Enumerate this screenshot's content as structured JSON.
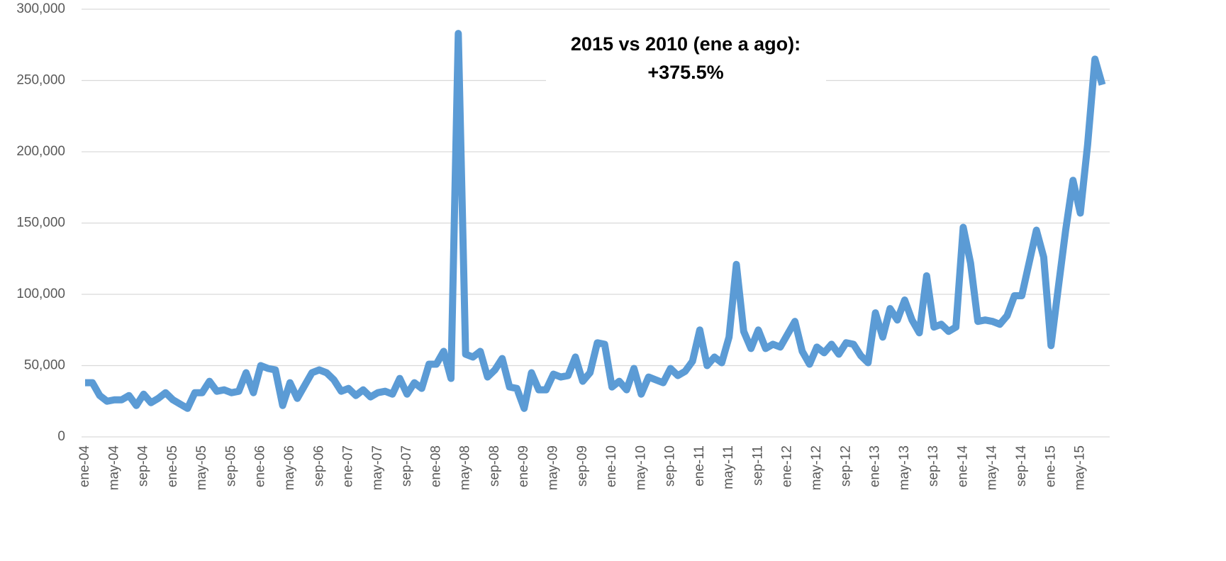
{
  "chart_data": {
    "type": "line",
    "annotation": [
      "2015 vs 2010 (ene a ago):",
      "+375.5%"
    ],
    "categories": [
      "ene-04",
      null,
      null,
      null,
      "may-04",
      null,
      null,
      null,
      "sep-04",
      null,
      null,
      null,
      "ene-05",
      null,
      null,
      null,
      "may-05",
      null,
      null,
      null,
      "sep-05",
      null,
      null,
      null,
      "ene-06",
      null,
      null,
      null,
      "may-06",
      null,
      null,
      null,
      "sep-06",
      null,
      null,
      null,
      "ene-07",
      null,
      null,
      null,
      "may-07",
      null,
      null,
      null,
      "sep-07",
      null,
      null,
      null,
      "ene-08",
      null,
      null,
      null,
      "may-08",
      null,
      null,
      null,
      "sep-08",
      null,
      null,
      null,
      "ene-09",
      null,
      null,
      null,
      "may-09",
      null,
      null,
      null,
      "sep-09",
      null,
      null,
      null,
      "ene-10",
      null,
      null,
      null,
      "may-10",
      null,
      null,
      null,
      "sep-10",
      null,
      null,
      null,
      "ene-11",
      null,
      null,
      null,
      "may-11",
      null,
      null,
      null,
      "sep-11",
      null,
      null,
      null,
      "ene-12",
      null,
      null,
      null,
      "may-12",
      null,
      null,
      null,
      "sep-12",
      null,
      null,
      null,
      "ene-13",
      null,
      null,
      null,
      "may-13",
      null,
      null,
      null,
      "sep-13",
      null,
      null,
      null,
      "ene-14",
      null,
      null,
      null,
      "may-14",
      null,
      null,
      null,
      "sep-14",
      null,
      null,
      null,
      "ene-15",
      null,
      null,
      null,
      "may-15",
      null,
      null,
      null
    ],
    "series": [
      {
        "color": "#5b9bd5",
        "values": [
          38000,
          38000,
          29000,
          25000,
          26000,
          26000,
          29000,
          22000,
          30000,
          24000,
          27000,
          31000,
          26000,
          23000,
          20000,
          31000,
          31000,
          39000,
          32000,
          33000,
          31000,
          32000,
          45000,
          31000,
          50000,
          48000,
          47000,
          22000,
          38000,
          27000,
          36000,
          45000,
          47000,
          45000,
          40000,
          32000,
          34000,
          29000,
          33000,
          28000,
          31000,
          32000,
          30000,
          41000,
          30000,
          38000,
          34000,
          51000,
          51000,
          60000,
          41000,
          283000,
          58000,
          56000,
          60000,
          42000,
          47000,
          55000,
          35000,
          34000,
          20000,
          45000,
          33000,
          33000,
          44000,
          42000,
          43000,
          56000,
          39000,
          45000,
          66000,
          65000,
          35000,
          39000,
          33000,
          48000,
          30000,
          42000,
          40000,
          38000,
          48000,
          43000,
          46000,
          53000,
          75000,
          50000,
          56000,
          52000,
          70000,
          121000,
          74000,
          62000,
          75000,
          62000,
          65000,
          63000,
          72000,
          81000,
          60000,
          51000,
          63000,
          59000,
          65000,
          58000,
          66000,
          65000,
          57000,
          52000,
          87000,
          70000,
          90000,
          82000,
          96000,
          82000,
          73000,
          113000,
          77000,
          79000,
          74000,
          77000,
          147000,
          122000,
          81000,
          82000,
          81000,
          79000,
          85000,
          99000,
          99000,
          122000,
          145000,
          126000,
          64000,
          105000,
          145000,
          180000,
          157000,
          205000,
          265000,
          247000
        ]
      }
    ],
    "ylim": [
      0,
      300000
    ],
    "yticks": [
      0,
      {
        "value": 50000,
        "label": "50,000"
      },
      {
        "value": 100000,
        "label": "100,000"
      },
      {
        "value": 150000,
        "label": "150,000"
      },
      {
        "value": 200000,
        "label": "200,000"
      },
      {
        "value": 250000,
        "label": "250,000"
      },
      {
        "value": 300000,
        "label": "300,000"
      }
    ],
    "grid": true
  }
}
